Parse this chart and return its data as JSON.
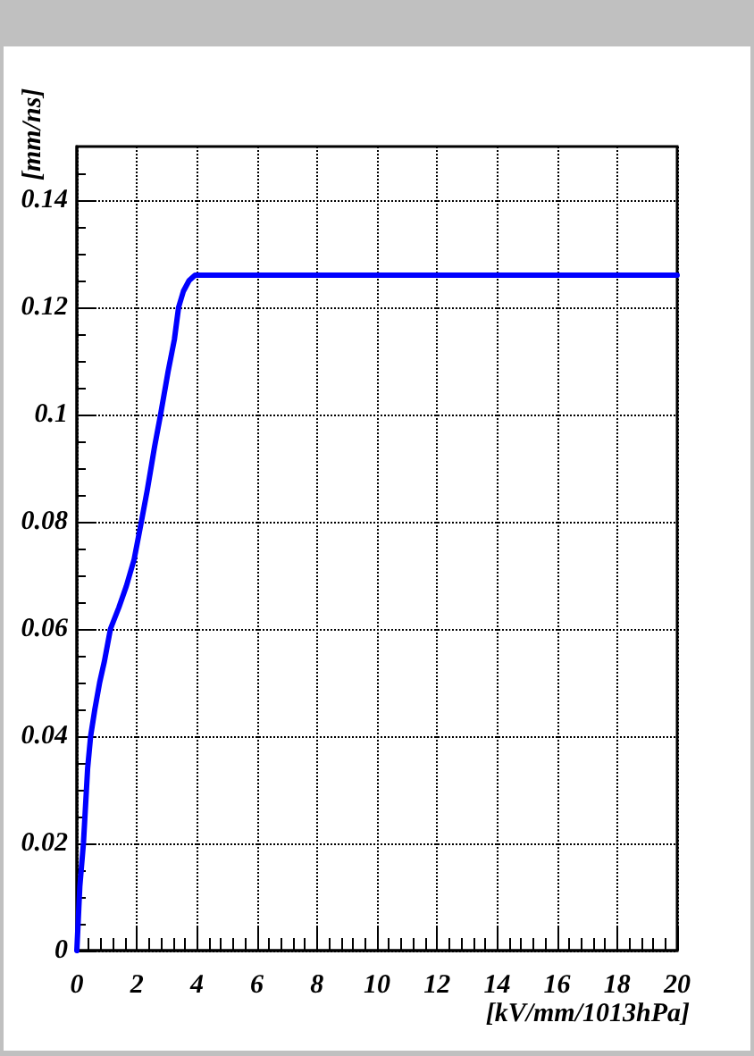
{
  "chart_data": {
    "type": "line",
    "xlabel": "[kV/mm/1013hPa]",
    "ylabel": "[mm/ns]",
    "x": [
      0,
      0.1,
      0.22,
      0.36,
      0.46,
      0.6,
      0.76,
      0.92,
      1.12,
      1.4,
      1.65,
      1.91,
      2.15,
      2.35,
      2.59,
      2.79,
      3.04,
      3.25,
      3.39,
      3.55,
      3.74,
      3.94,
      20
    ],
    "values": [
      0,
      0.012,
      0.02,
      0.034,
      0.04,
      0.045,
      0.05,
      0.054,
      0.06,
      0.064,
      0.068,
      0.073,
      0.08,
      0.086,
      0.094,
      0.1,
      0.108,
      0.114,
      0.12,
      0.123,
      0.125,
      0.126,
      0.126
    ],
    "color": "#0000ff",
    "xlim": [
      0,
      20
    ],
    "ylim": [
      0,
      0.15
    ],
    "xticks": [
      0,
      {
        "value": 0.4,
        "label": null
      },
      {
        "value": 0.8,
        "label": null
      },
      {
        "value": 1.2,
        "label": null
      },
      {
        "value": 1.6,
        "label": null
      },
      2,
      {
        "value": 2.4,
        "label": null
      },
      {
        "value": 2.8,
        "label": null
      },
      {
        "value": 3.2,
        "label": null
      },
      {
        "value": 3.6,
        "label": null
      },
      4,
      {
        "value": 4.4,
        "label": null
      },
      {
        "value": 4.8,
        "label": null
      },
      {
        "value": 5.2,
        "label": null
      },
      {
        "value": 5.6,
        "label": null
      },
      6,
      {
        "value": 6.4,
        "label": null
      },
      {
        "value": 6.8,
        "label": null
      },
      {
        "value": 7.2,
        "label": null
      },
      {
        "value": 7.6,
        "label": null
      },
      8,
      {
        "value": 8.4,
        "label": null
      },
      {
        "value": 8.8,
        "label": null
      },
      {
        "value": 9.2,
        "label": null
      },
      {
        "value": 9.6,
        "label": null
      },
      10,
      {
        "value": 10.4,
        "label": null
      },
      {
        "value": 10.8,
        "label": null
      },
      {
        "value": 11.2,
        "label": null
      },
      {
        "value": 11.6,
        "label": null
      },
      12,
      {
        "value": 12.4,
        "label": null
      },
      {
        "value": 12.8,
        "label": null
      },
      {
        "value": 13.2,
        "label": null
      },
      {
        "value": 13.6,
        "label": null
      },
      14,
      {
        "value": 14.4,
        "label": null
      },
      {
        "value": 14.8,
        "label": null
      },
      {
        "value": 15.2,
        "label": null
      },
      {
        "value": 15.6,
        "label": null
      },
      16,
      {
        "value": 16.4,
        "label": null
      },
      {
        "value": 16.8,
        "label": null
      },
      {
        "value": 17.2,
        "label": null
      },
      {
        "value": 17.6,
        "label": null
      },
      18,
      {
        "value": 18.4,
        "label": null
      },
      {
        "value": 18.8,
        "label": null
      },
      {
        "value": 19.2,
        "label": null
      },
      {
        "value": 19.6,
        "label": null
      },
      20
    ],
    "yticks": [
      0,
      {
        "value": 0.005,
        "label": null
      },
      {
        "value": 0.01,
        "label": null
      },
      {
        "value": 0.015,
        "label": null
      },
      0.02,
      {
        "value": 0.025,
        "label": null
      },
      {
        "value": 0.03,
        "label": null
      },
      {
        "value": 0.035,
        "label": null
      },
      0.04,
      {
        "value": 0.045,
        "label": null
      },
      {
        "value": 0.05,
        "label": null
      },
      {
        "value": 0.055,
        "label": null
      },
      0.06,
      {
        "value": 0.065,
        "label": null
      },
      {
        "value": 0.07,
        "label": null
      },
      {
        "value": 0.075,
        "label": null
      },
      0.08,
      {
        "value": 0.085,
        "label": null
      },
      {
        "value": 0.09,
        "label": null
      },
      {
        "value": 0.095,
        "label": null
      },
      0.1,
      {
        "value": 0.105,
        "label": null
      },
      {
        "value": 0.11,
        "label": null
      },
      {
        "value": 0.115,
        "label": null
      },
      0.12,
      {
        "value": 0.125,
        "label": null
      },
      {
        "value": 0.13,
        "label": null
      },
      {
        "value": 0.135,
        "label": null
      },
      0.14,
      {
        "value": 0.145,
        "label": null
      }
    ],
    "grid": true
  }
}
